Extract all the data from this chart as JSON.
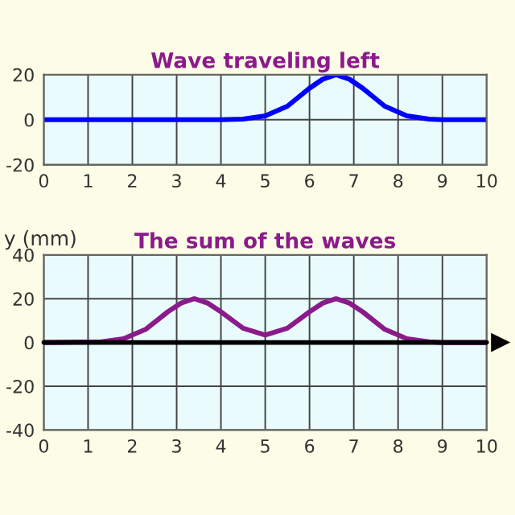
{
  "chart_data": [
    {
      "type": "line",
      "title": "Wave traveling left",
      "xlim": [
        0,
        10
      ],
      "xticks": [
        0,
        1,
        2,
        3,
        4,
        5,
        6,
        7,
        8,
        9,
        10
      ],
      "ylim": [
        -20,
        20
      ],
      "yticks": [
        -20,
        0,
        20
      ],
      "grid": true,
      "series": [
        {
          "color": "#0000ff",
          "x": [
            0,
            4,
            4.5,
            5,
            5.5,
            6,
            6.3,
            6.6,
            6.9,
            7.2,
            7.7,
            8.2,
            8.7,
            9,
            10
          ],
          "values": [
            0,
            0,
            0.3,
            1.7,
            6,
            14,
            18,
            20,
            18,
            14,
            6,
            1.7,
            0.3,
            0,
            0
          ]
        }
      ]
    },
    {
      "type": "line",
      "title": "The sum of the waves",
      "ylabel": "y (mm)",
      "xlim": [
        0,
        10
      ],
      "xticks": [
        0,
        1,
        2,
        3,
        4,
        5,
        6,
        7,
        8,
        9,
        10
      ],
      "ylim": [
        -40,
        40
      ],
      "yticks": [
        -40,
        -20,
        0,
        20,
        40
      ],
      "grid": true,
      "ref_lines": [
        {
          "axis": "y",
          "value": 0,
          "color": "#000000"
        }
      ],
      "series": [
        {
          "color": "#8b1a8b",
          "x": [
            0,
            1.3,
            1.8,
            2.3,
            2.8,
            3.1,
            3.4,
            3.7,
            4,
            4.5,
            5,
            5.5,
            6,
            6.3,
            6.6,
            6.9,
            7.2,
            7.7,
            8.2,
            8.7,
            9,
            10
          ],
          "values": [
            0,
            0.3,
            1.7,
            6,
            14,
            18,
            20,
            18,
            14,
            6.5,
            3.4,
            6.5,
            14,
            18,
            20,
            18,
            14,
            6,
            1.7,
            0.3,
            0,
            0
          ]
        }
      ]
    }
  ]
}
